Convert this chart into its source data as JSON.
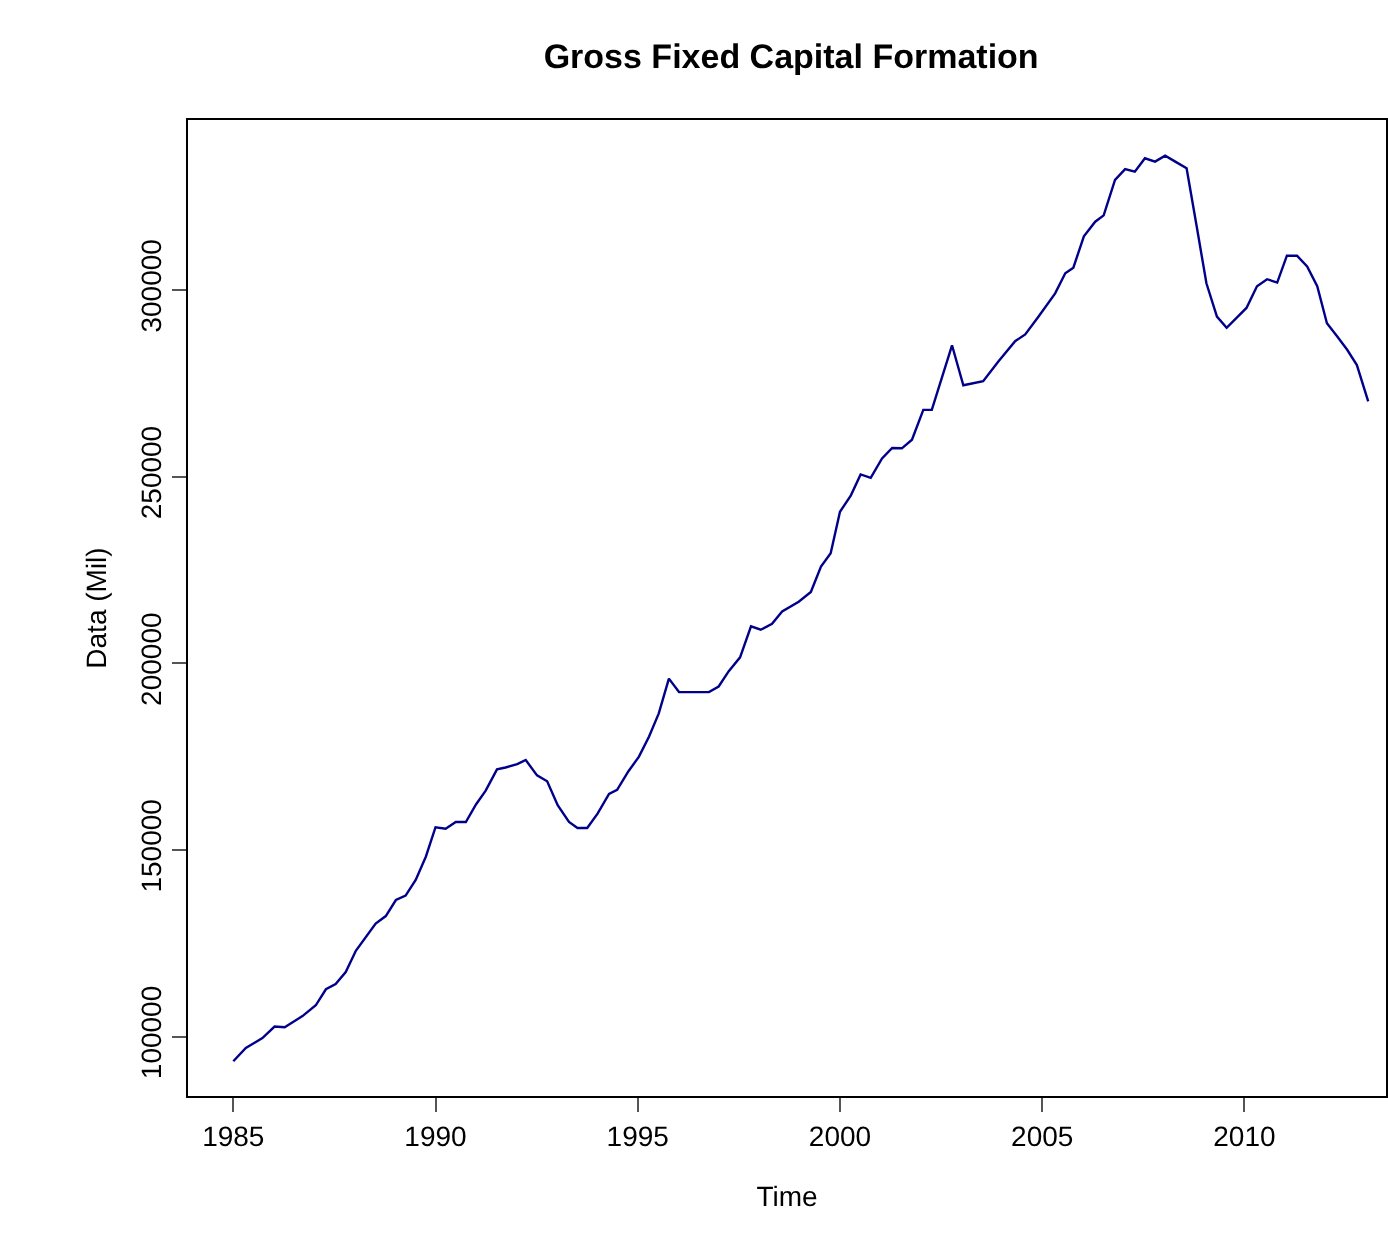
{
  "chart_data": {
    "type": "line",
    "title": "Gross Fixed Capital Formation",
    "xlabel": "Time",
    "ylabel": "Data (Mil)",
    "xlim": [
      1983.88,
      2013.5
    ],
    "ylim": [
      84100,
      345550
    ],
    "xticks": [
      1985,
      1990,
      1995,
      2000,
      2005,
      2010
    ],
    "yticks": [
      100000,
      150000,
      200000,
      250000,
      300000
    ],
    "marker": "none",
    "line_style": "solid",
    "series": [
      {
        "color": "#00008b",
        "x": [
          1985.0,
          1985.31,
          1985.72,
          1986.02,
          1986.27,
          1986.71,
          1987.04,
          1987.29,
          1987.53,
          1987.78,
          1988.03,
          1988.52,
          1988.77,
          1989.02,
          1989.26,
          1989.51,
          1989.76,
          1990.0,
          1990.25,
          1990.5,
          1990.75,
          1991.0,
          1991.24,
          1991.52,
          1991.73,
          1992.02,
          1992.23,
          1992.51,
          1992.76,
          1993.02,
          1993.3,
          1993.51,
          1993.75,
          1994.01,
          1994.29,
          1994.49,
          1994.77,
          1995.03,
          1995.28,
          1995.52,
          1995.77,
          1996.02,
          1996.76,
          1997.0,
          1997.25,
          1997.53,
          1997.8,
          1998.04,
          1998.32,
          1998.57,
          1998.98,
          1999.28,
          1999.53,
          1999.77,
          2000.0,
          2000.27,
          2000.51,
          2000.76,
          2001.04,
          2001.29,
          2001.53,
          2001.78,
          2002.06,
          2002.27,
          2002.77,
          2003.05,
          2003.54,
          2003.92,
          2004.33,
          2004.58,
          2004.91,
          2005.32,
          2005.57,
          2005.77,
          2006.03,
          2006.31,
          2006.52,
          2006.8,
          2007.05,
          2007.29,
          2007.54,
          2007.79,
          2008.04,
          2008.29,
          2008.57,
          2008.82,
          2009.06,
          2009.32,
          2009.56,
          2010.05,
          2010.31,
          2010.56,
          2010.81,
          2011.05,
          2011.3,
          2011.55,
          2011.8,
          2012.04,
          2012.29,
          2012.54,
          2012.78,
          2013.06
        ],
        "values": [
          93400,
          97000,
          99600,
          102700,
          102500,
          105500,
          108400,
          112700,
          114100,
          117300,
          123000,
          130300,
          132300,
          136600,
          137800,
          142000,
          148200,
          156100,
          155700,
          157500,
          157500,
          162200,
          165900,
          171600,
          172100,
          173000,
          174100,
          170000,
          168400,
          162000,
          157500,
          155900,
          155900,
          159800,
          165000,
          166100,
          171100,
          175000,
          180400,
          186600,
          195900,
          192300,
          192300,
          193800,
          197900,
          201600,
          209900,
          209000,
          210600,
          213900,
          216500,
          219100,
          225900,
          229500,
          240600,
          245000,
          250600,
          249700,
          254900,
          257700,
          257600,
          259900,
          267900,
          267900,
          285200,
          274500,
          275600,
          280900,
          286300,
          288100,
          292900,
          299100,
          304500,
          306000,
          314400,
          318300,
          320000,
          329500,
          332400,
          331700,
          335300,
          334400,
          336000,
          334400,
          332600,
          317000,
          301800,
          292900,
          289900,
          295200,
          301000,
          302900,
          302000,
          309200,
          309200,
          306300,
          301000,
          291100,
          287600,
          284000,
          279900,
          270200
        ]
      }
    ]
  }
}
